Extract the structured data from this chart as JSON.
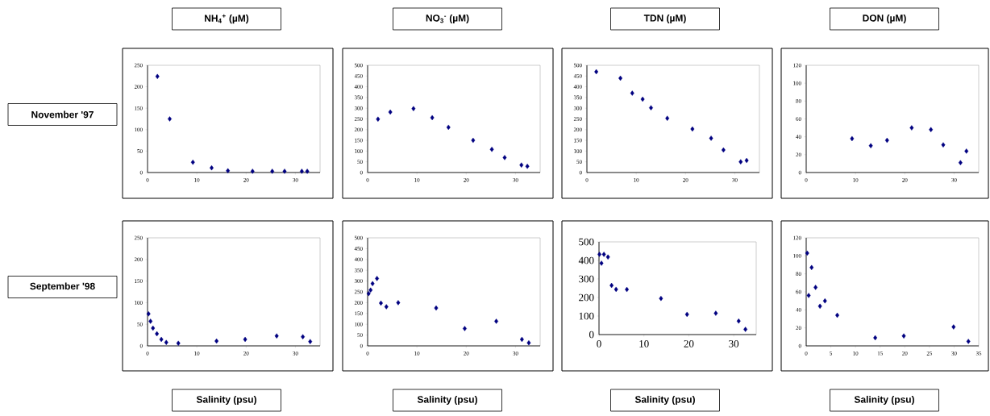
{
  "chart_data": [
    {
      "type": "scatter",
      "title": "NH$_{4}$$^{+}$ (µM)",
      "ylabel": "November '97",
      "marker": "diamond",
      "color": "#000080",
      "xlim": [
        0,
        35
      ],
      "xticks": [
        0,
        10,
        20,
        30
      ],
      "ylim": [
        0,
        250
      ],
      "yticks": [
        0,
        50,
        100,
        150,
        200,
        250
      ],
      "x": [
        2,
        4.5,
        9.2,
        13,
        16.3,
        21.3,
        25.3,
        27.8,
        31.3,
        32.4
      ],
      "values": [
        224,
        125,
        24,
        11,
        4,
        3,
        3,
        3,
        3,
        3
      ]
    },
    {
      "type": "scatter",
      "title": "NO$_{3}$$^{-}$ (µM)",
      "marker": "diamond",
      "color": "#000080",
      "xlim": [
        0,
        35
      ],
      "xticks": [
        0,
        10,
        20,
        30
      ],
      "ylim": [
        0,
        500
      ],
      "yticks": [
        0,
        50,
        100,
        150,
        200,
        250,
        300,
        350,
        400,
        450,
        500
      ],
      "x": [
        2.1,
        4.6,
        9.3,
        13.1,
        16.4,
        21.4,
        25.2,
        27.8,
        31.2,
        32.4
      ],
      "values": [
        249,
        282,
        298,
        256,
        211,
        150,
        108,
        70,
        35,
        29
      ]
    },
    {
      "type": "scatter",
      "title": "TDN (µM)",
      "marker": "diamond",
      "color": "#000080",
      "xlim": [
        0,
        35
      ],
      "xticks": [
        0,
        10,
        20,
        30
      ],
      "ylim": [
        0,
        500
      ],
      "yticks": [
        0,
        50,
        100,
        150,
        200,
        250,
        300,
        350,
        400,
        450,
        500
      ],
      "x": [
        1.9,
        6.8,
        9.2,
        11.3,
        13,
        16.3,
        21.4,
        25.2,
        27.7,
        31.2,
        32.4
      ],
      "values": [
        470,
        440,
        370,
        342,
        302,
        253,
        203,
        160,
        105,
        50,
        56
      ]
    },
    {
      "type": "scatter",
      "title": "DON (µM)",
      "marker": "diamond",
      "color": "#000080",
      "xlim": [
        0,
        35
      ],
      "xticks": [
        0,
        10,
        20,
        30
      ],
      "ylim": [
        0,
        120
      ],
      "yticks": [
        0,
        20,
        40,
        60,
        80,
        100,
        120
      ],
      "x": [
        9.3,
        13.1,
        16.4,
        21.4,
        25.3,
        27.8,
        31.3,
        32.5
      ],
      "values": [
        38,
        30,
        36,
        50,
        48,
        31,
        11,
        24
      ]
    },
    {
      "type": "scatter",
      "xlabel": "Salinity (psu)",
      "ylabel": "September '98",
      "marker": "diamond",
      "color": "#000080",
      "xlim": [
        0,
        35
      ],
      "xticks": [
        0,
        10,
        20,
        30
      ],
      "ylim": [
        0,
        250
      ],
      "yticks": [
        0,
        50,
        100,
        150,
        200,
        250
      ],
      "x": [
        0.2,
        0.6,
        1.1,
        1.9,
        2.8,
        3.8,
        6.25,
        14,
        19.8,
        26.2,
        31.5,
        33
      ],
      "values": [
        74,
        57,
        41,
        28,
        15,
        8,
        6,
        11,
        15,
        23,
        21,
        10
      ]
    },
    {
      "type": "scatter",
      "xlabel": "Salinity (psu)",
      "marker": "diamond",
      "color": "#000080",
      "xlim": [
        0,
        35
      ],
      "xticks": [
        0,
        10,
        20,
        30
      ],
      "ylim": [
        0,
        500
      ],
      "yticks": [
        0,
        50,
        100,
        150,
        200,
        250,
        300,
        350,
        400,
        450,
        500
      ],
      "x": [
        0.2,
        0.6,
        1.0,
        1.9,
        2.7,
        3.8,
        6.2,
        13.9,
        19.7,
        26.1,
        31.3,
        32.7
      ],
      "values": [
        242,
        258,
        288,
        312,
        198,
        181,
        200,
        175,
        80,
        114,
        30,
        14
      ]
    },
    {
      "type": "scatter",
      "xlabel": "Salinity (psu)",
      "marker": "diamond",
      "color": "#000080",
      "xlim": [
        0,
        35
      ],
      "xticks": [
        0,
        10,
        20,
        30
      ],
      "ylim": [
        0,
        500
      ],
      "yticks": [
        0,
        100,
        200,
        300,
        400,
        500
      ],
      "x": [
        0.1,
        0.55,
        1.1,
        2.0,
        2.8,
        3.8,
        6.2,
        13.8,
        19.6,
        26,
        31.1,
        32.6
      ],
      "values": [
        433,
        385,
        433,
        418,
        265,
        244,
        243,
        195,
        109,
        115,
        73,
        28
      ]
    },
    {
      "type": "scatter",
      "xlabel": "Salinity (psu)",
      "marker": "diamond",
      "color": "#000080",
      "xlim": [
        0,
        35
      ],
      "xticks": [
        0,
        5,
        10,
        15,
        20,
        25,
        30,
        35
      ],
      "ylim": [
        0,
        120
      ],
      "yticks": [
        0,
        20,
        40,
        60,
        80,
        100,
        120
      ],
      "x": [
        0.2,
        0.5,
        1.1,
        1.9,
        2.8,
        3.8,
        6.3,
        14,
        19.8,
        29.9,
        32.9
      ],
      "values": [
        103,
        56,
        87,
        65,
        44,
        50,
        34,
        9,
        11,
        21,
        5
      ]
    }
  ]
}
